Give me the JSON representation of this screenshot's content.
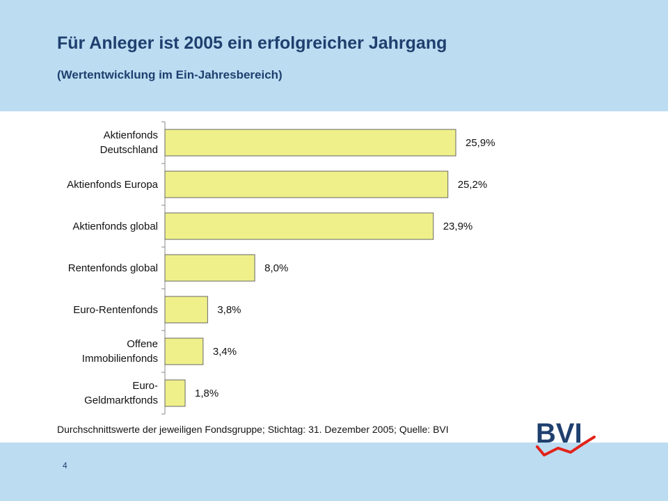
{
  "header": {
    "title": "Für Anleger ist 2005 ein erfolgreicher Jahrgang",
    "subtitle": "(Wertentwicklung im Ein-Jahresbereich)"
  },
  "chart_data": {
    "type": "bar",
    "orientation": "horizontal",
    "categories": [
      [
        "Aktienfonds",
        "Deutschland"
      ],
      [
        "Aktienfonds Europa"
      ],
      [
        "Aktienfonds global"
      ],
      [
        "Rentenfonds global"
      ],
      [
        "Euro-Rentenfonds"
      ],
      [
        "Offene",
        "Immobilienfonds"
      ],
      [
        "Euro-",
        "Geldmarktfonds"
      ]
    ],
    "values": [
      25.9,
      25.2,
      23.9,
      8.0,
      3.8,
      3.4,
      1.8
    ],
    "value_labels": [
      "25,9%",
      "25,2%",
      "23,9%",
      "8,0%",
      "3,8%",
      "3,4%",
      "1,8%"
    ],
    "xlim": [
      0,
      27
    ],
    "bar_color": "#f0f08a",
    "grid": false,
    "legend": "none"
  },
  "footnote": "Durchschnittswerte der jeweiligen Fondsgruppe; Stichtag: 31. Dezember 2005; Quelle: BVI",
  "page_number": "4",
  "logo": {
    "text": "BVI",
    "color": "#1f3f6e",
    "accent": "#e2231a"
  },
  "colors": {
    "band": "#bcdcf2",
    "title": "#1f3f6e"
  }
}
